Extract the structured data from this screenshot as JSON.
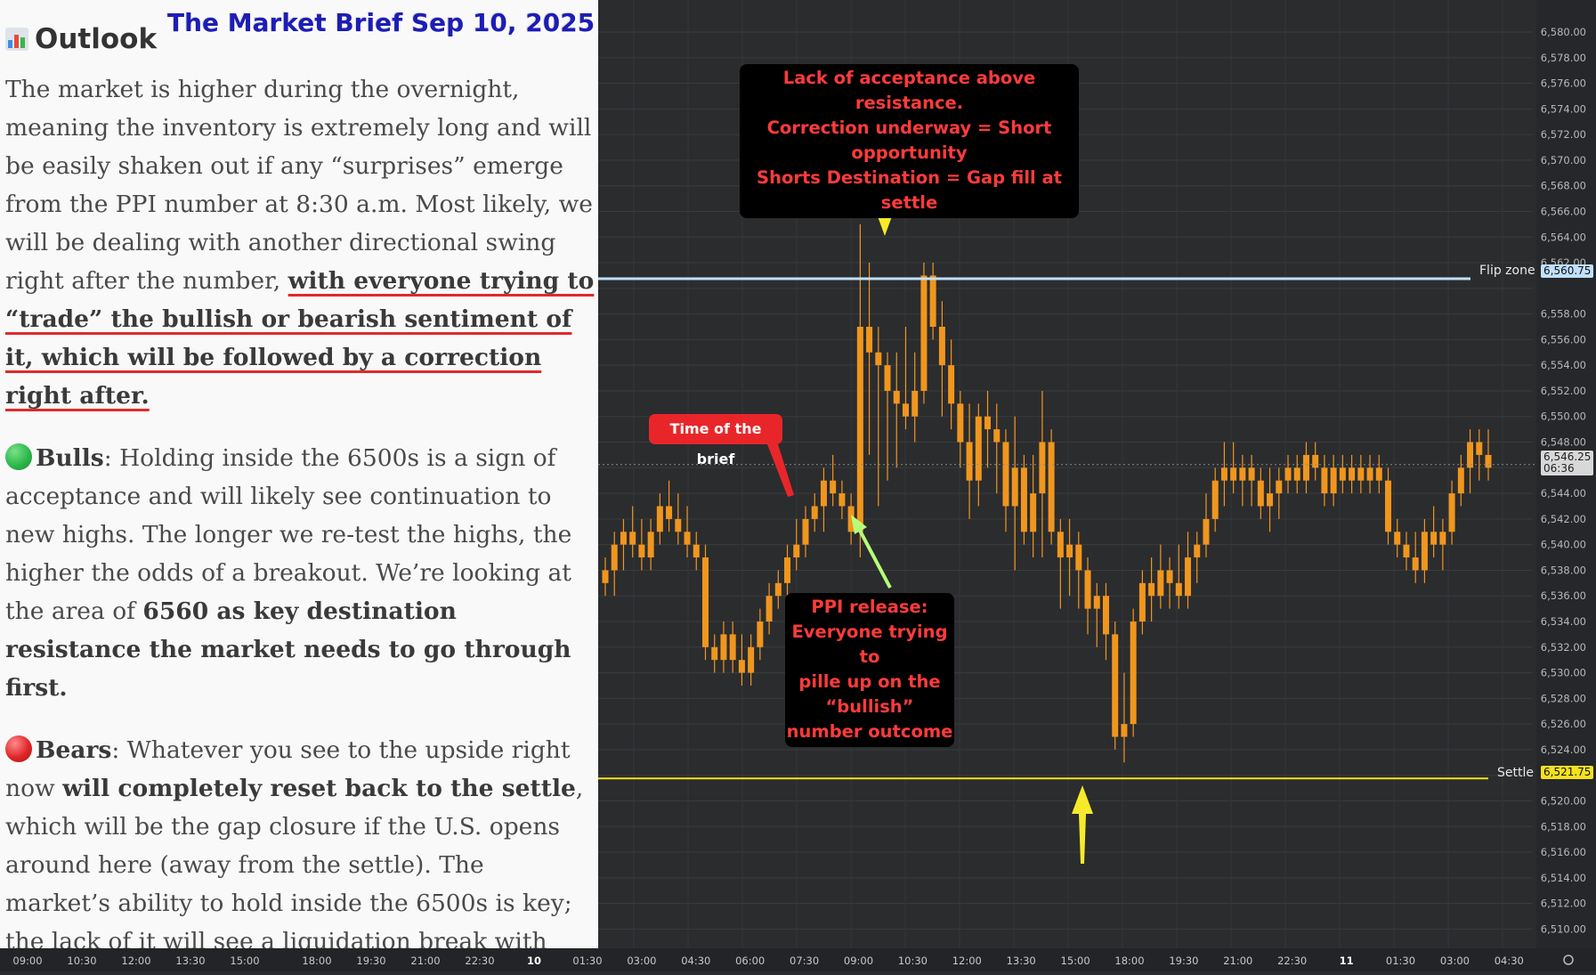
{
  "header": {
    "outlook_title": "Outlook",
    "brief_title": "The Market Brief Sep 10, 2025"
  },
  "article": {
    "p1_plain": "The market is higher during the overnight, meaning the inventory is extremely long and will be easily shaken out if any “surprises” emerge from the PPI number at 8:30 a.m. Most likely, we will be dealing with another directional swing right after the number, ",
    "p1_emph": "with everyone trying to “trade” the bullish or bearish sentiment of it, which will be followed by a correction right after.",
    "bulls_label": "Bulls",
    "bulls_text": ": Holding inside the 6500s is a sign of acceptance and will likely see continuation to new highs. The longer we re-test the highs, the higher the odds of a breakout. We’re looking at the area of ",
    "bulls_emph": "6560 as key destination resistance the market needs to go through first.",
    "bears_label": "Bears",
    "bears_text1": ": Whatever you see to the upside right now ",
    "bears_emph": "will completely reset back to the settle",
    "bears_text2": ", which will be the gap closure if the U.S. opens around here (away from the settle). The market’s ability to hold inside the 6500s is key; the lack of it will see a liquidation break with destination references below."
  },
  "annotations": {
    "top_line1": "Lack of acceptance above resistance.",
    "top_line2": "Correction underway = Short opportunity",
    "top_line3": "Shorts Destination = Gap fill at settle",
    "time_of_brief": "Time of the brief",
    "ppi_line1": "PPI release:",
    "ppi_line2": "Everyone trying to",
    "ppi_line3": "pille up on the “bullish”",
    "ppi_line4": "number outcome"
  },
  "colors": {
    "candle": "#f0961e",
    "flip_line": "#bfe0ff",
    "settle_line": "#f5e11e",
    "arrow_yellow": "#f7ea2a",
    "arrow_green": "#b5ff7a",
    "annotation_text": "#ff3b3b",
    "brief_title": "#1d1db5",
    "underline": "#e02a2a",
    "bulls_dot": "#2db84b",
    "bears_dot": "#e0262a"
  },
  "chart_data": {
    "type": "candlestick",
    "title": "",
    "ylim": [
      6508.5,
      6582.5
    ],
    "y_ticks": [
      "6,580.00",
      "6,578.00",
      "6,576.00",
      "6,574.00",
      "6,572.00",
      "6,570.00",
      "6,568.00",
      "6,566.00",
      "6,564.00",
      "6,562.00",
      "6,558.00",
      "6,556.00",
      "6,554.00",
      "6,552.00",
      "6,550.00",
      "6,548.00",
      "6,544.00",
      "6,542.00",
      "6,540.00",
      "6,538.00",
      "6,536.00",
      "6,534.00",
      "6,532.00",
      "6,530.00",
      "6,528.00",
      "6,526.00",
      "6,524.00",
      "6,520.00",
      "6,518.00",
      "6,516.00",
      "6,514.00",
      "6,512.00",
      "6,510.00"
    ],
    "x_ticks": [
      "09:00",
      "10:30",
      "12:00",
      "13:30",
      "15:00",
      "18:00",
      "19:30",
      "21:00",
      "22:30",
      "10",
      "01:30",
      "03:00",
      "04:30",
      "06:00",
      "07:30",
      "09:00",
      "10:30",
      "12:00",
      "13:30",
      "15:00",
      "18:00",
      "19:30",
      "21:00",
      "22:30",
      "11",
      "01:30",
      "03:00",
      "04:30"
    ],
    "bold_x_ticks": [
      "10",
      "11"
    ],
    "levels": [
      {
        "name": "Flip zone",
        "value": 6560.75,
        "tag": "6,560.75"
      },
      {
        "name": "Settle",
        "value": 6521.75,
        "tag": "6,521.75"
      }
    ],
    "current_price": {
      "tag": "6,546.25",
      "countdown": "06:36",
      "value": 6546.25
    },
    "candles": [
      [
        6537,
        6539,
        6536,
        6538
      ],
      [
        6538,
        6541,
        6536,
        6540
      ],
      [
        6540,
        6542,
        6538,
        6541
      ],
      [
        6541,
        6543,
        6539,
        6540
      ],
      [
        6540,
        6542,
        6538,
        6539
      ],
      [
        6539,
        6542,
        6538,
        6541
      ],
      [
        6541,
        6544,
        6540,
        6543
      ],
      [
        6543,
        6545,
        6541,
        6542
      ],
      [
        6542,
        6544,
        6540,
        6541
      ],
      [
        6541,
        6543,
        6539,
        6540
      ],
      [
        6540,
        6541,
        6538,
        6539
      ],
      [
        6539,
        6540,
        6531,
        6532
      ],
      [
        6532,
        6533,
        6530,
        6531
      ],
      [
        6531,
        6534,
        6530,
        6533
      ],
      [
        6533,
        6534,
        6530,
        6531
      ],
      [
        6531,
        6533,
        6529,
        6530
      ],
      [
        6530,
        6533,
        6529,
        6532
      ],
      [
        6532,
        6535,
        6531,
        6534
      ],
      [
        6534,
        6537,
        6533,
        6536
      ],
      [
        6536,
        6538,
        6535,
        6537
      ],
      [
        6537,
        6540,
        6536,
        6539
      ],
      [
        6539,
        6542,
        6538,
        6540
      ],
      [
        6540,
        6543,
        6539,
        6542
      ],
      [
        6542,
        6544,
        6541,
        6543
      ],
      [
        6543,
        6546,
        6541,
        6545
      ],
      [
        6545,
        6547,
        6543,
        6544
      ],
      [
        6544,
        6545,
        6542,
        6543
      ],
      [
        6543,
        6544,
        6540,
        6541
      ],
      [
        6541,
        6565,
        6539,
        6557
      ],
      [
        6557,
        6562,
        6547,
        6555
      ],
      [
        6555,
        6557,
        6543,
        6554
      ],
      [
        6554,
        6555,
        6545,
        6552
      ],
      [
        6552,
        6555,
        6546,
        6551
      ],
      [
        6551,
        6557,
        6549,
        6550
      ],
      [
        6550,
        6555,
        6548,
        6552
      ],
      [
        6552,
        6562,
        6551,
        6561
      ],
      [
        6561,
        6562,
        6556,
        6557
      ],
      [
        6557,
        6559,
        6550,
        6554
      ],
      [
        6554,
        6556,
        6549,
        6551
      ],
      [
        6551,
        6552,
        6546,
        6548
      ],
      [
        6548,
        6551,
        6542,
        6545
      ],
      [
        6545,
        6551,
        6543,
        6550
      ],
      [
        6550,
        6552,
        6546,
        6549
      ],
      [
        6549,
        6551,
        6544,
        6548
      ],
      [
        6548,
        6549,
        6541,
        6543
      ],
      [
        6543,
        6550,
        6538,
        6546
      ],
      [
        6546,
        6547,
        6540,
        6541
      ],
      [
        6541,
        6547,
        6539,
        6544
      ],
      [
        6544,
        6552,
        6539,
        6548
      ],
      [
        6548,
        6549,
        6540,
        6541
      ],
      [
        6541,
        6542,
        6535,
        6539
      ],
      [
        6539,
        6542,
        6536,
        6540
      ],
      [
        6540,
        6541,
        6535,
        6538
      ],
      [
        6538,
        6539,
        6533,
        6535
      ],
      [
        6535,
        6537,
        6532,
        6536
      ],
      [
        6536,
        6537,
        6531,
        6533
      ],
      [
        6533,
        6534,
        6524,
        6525
      ],
      [
        6525,
        6530,
        6523,
        6526
      ],
      [
        6526,
        6535,
        6525,
        6534
      ],
      [
        6534,
        6538,
        6533,
        6537
      ],
      [
        6537,
        6539,
        6534,
        6536
      ],
      [
        6536,
        6540,
        6535,
        6538
      ],
      [
        6538,
        6539,
        6535,
        6537
      ],
      [
        6537,
        6540,
        6535,
        6536
      ],
      [
        6536,
        6541,
        6535,
        6539
      ],
      [
        6539,
        6541,
        6537,
        6540
      ],
      [
        6540,
        6544,
        6539,
        6542
      ],
      [
        6542,
        6546,
        6541,
        6545
      ],
      [
        6545,
        6548,
        6543,
        6546
      ],
      [
        6546,
        6548,
        6544,
        6545
      ],
      [
        6545,
        6547,
        6543,
        6546
      ],
      [
        6546,
        6547,
        6543,
        6545
      ],
      [
        6545,
        6546,
        6542,
        6543
      ],
      [
        6543,
        6546,
        6541,
        6544
      ],
      [
        6544,
        6546,
        6542,
        6545
      ],
      [
        6545,
        6547,
        6544,
        6546
      ],
      [
        6546,
        6547,
        6544,
        6545
      ],
      [
        6545,
        6548,
        6544,
        6547
      ],
      [
        6547,
        6548,
        6545,
        6546
      ],
      [
        6546,
        6547,
        6543,
        6544
      ],
      [
        6544,
        6547,
        6543,
        6546
      ],
      [
        6546,
        6547,
        6544,
        6545
      ],
      [
        6545,
        6547,
        6544,
        6546
      ],
      [
        6546,
        6547,
        6544,
        6545
      ],
      [
        6545,
        6547,
        6544,
        6546
      ],
      [
        6546,
        6547,
        6544,
        6545
      ],
      [
        6545,
        6546,
        6540,
        6541
      ],
      [
        6541,
        6542,
        6539,
        6540
      ],
      [
        6540,
        6541,
        6538,
        6539
      ],
      [
        6539,
        6541,
        6537,
        6538
      ],
      [
        6538,
        6542,
        6537,
        6541
      ],
      [
        6541,
        6543,
        6539,
        6540
      ],
      [
        6540,
        6542,
        6538,
        6541
      ],
      [
        6541,
        6545,
        6540,
        6544
      ],
      [
        6544,
        6547,
        6543,
        6546
      ],
      [
        6546,
        6549,
        6544,
        6548
      ],
      [
        6548,
        6549,
        6545,
        6547
      ],
      [
        6547,
        6549,
        6545,
        6546
      ]
    ]
  }
}
